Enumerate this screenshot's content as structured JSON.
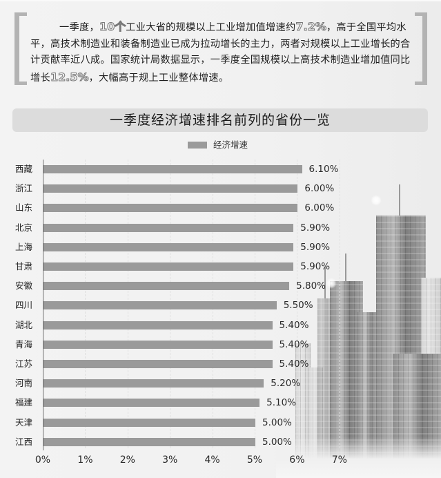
{
  "intro": {
    "parts": [
      {
        "text": "一季度，",
        "highlight": false
      },
      {
        "text": "10个",
        "highlight": true
      },
      {
        "text": "工业大省的规模以上工业增加值增速约",
        "highlight": false
      },
      {
        "text": "7.2%",
        "highlight": true
      },
      {
        "text": "，高于全国平均水平，高技术制造业和装备制造业已成为拉动增长的主力，两者对规模以上工业增长的合计贡献率近八成。国家统计局数据显示，一季度全国规模以上高技术制造业增加值同比增长",
        "highlight": false
      },
      {
        "text": "12.5%",
        "highlight": true
      },
      {
        "text": "，大幅高于规上工业整体增速。",
        "highlight": false
      }
    ]
  },
  "colors": {
    "bar": "#9a9a9a",
    "title_bg": "#dcdcdc",
    "bracket": "#b3b3b3",
    "background": "#f2f2f2"
  },
  "chart_data": {
    "type": "bar",
    "orientation": "horizontal",
    "title": "一季度经济增速排名前列的省份一览",
    "legend": [
      "经济增速"
    ],
    "legend_position": "top",
    "xlabel": "",
    "ylabel": "",
    "xlim": [
      0,
      7
    ],
    "x_ticks": [
      "0%",
      "1%",
      "2%",
      "3%",
      "4%",
      "5%",
      "6%",
      "7%"
    ],
    "grid": true,
    "categories": [
      "西藏",
      "浙江",
      "山东",
      "北京",
      "上海",
      "甘肃",
      "安徽",
      "四川",
      "湖北",
      "青海",
      "江苏",
      "河南",
      "福建",
      "天津",
      "江西"
    ],
    "series": [
      {
        "name": "经济增速",
        "values": [
          6.1,
          6.0,
          6.0,
          5.9,
          5.9,
          5.9,
          5.8,
          5.5,
          5.4,
          5.4,
          5.4,
          5.2,
          5.1,
          5.0,
          5.0
        ]
      }
    ],
    "labels": [
      "6.10%",
      "6.00%",
      "6.00%",
      "5.90%",
      "5.90%",
      "5.90%",
      "5.80%",
      "5.50%",
      "5.40%",
      "5.40%",
      "5.40%",
      "5.20%",
      "5.10%",
      "5.00%",
      "5.00%"
    ]
  }
}
